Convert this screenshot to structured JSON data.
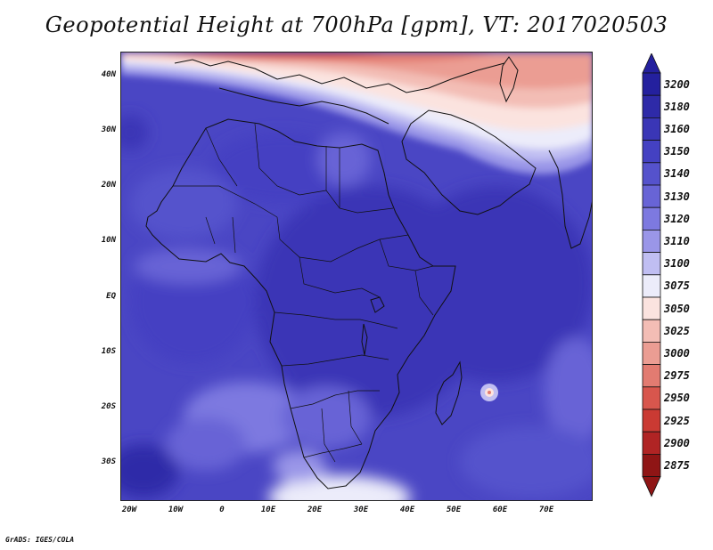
{
  "title": "Geopotential Height at 700hPa [gpm], VT: 2017020503",
  "footer": "GrADS: IGES/COLA",
  "lat_labels": [
    "40N",
    "30N",
    "20N",
    "10N",
    "EQ",
    "10S",
    "20S",
    "30S"
  ],
  "lon_labels": [
    "20W",
    "10W",
    "0",
    "10E",
    "20E",
    "30E",
    "40E",
    "50E",
    "60E",
    "70E"
  ],
  "colorbar": {
    "levels": [
      "3200",
      "3180",
      "3160",
      "3150",
      "3140",
      "3130",
      "3120",
      "3110",
      "3100",
      "3075",
      "3050",
      "3025",
      "3000",
      "2975",
      "2950",
      "2925",
      "2900",
      "2875"
    ],
    "colors": [
      "#24209e",
      "#2e2aa8",
      "#3a36b6",
      "#4441c2",
      "#5552cc",
      "#6864d6",
      "#7d79e0",
      "#9a96e8",
      "#c0bef2",
      "#ececfa",
      "#fbe3df",
      "#f3bdb5",
      "#eb9d93",
      "#e27b71",
      "#d8564d",
      "#ca3a33",
      "#b02424",
      "#8f1515"
    ]
  }
}
